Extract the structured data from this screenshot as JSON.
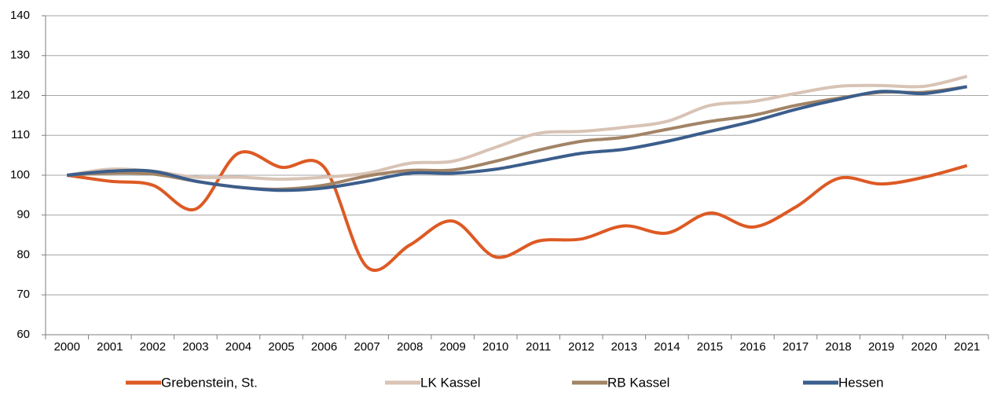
{
  "chart_data": {
    "type": "line",
    "categories": [
      "2000",
      "2001",
      "2002",
      "2003",
      "2004",
      "2005",
      "2006",
      "2007",
      "2008",
      "2009",
      "2010",
      "2011",
      "2012",
      "2013",
      "2014",
      "2015",
      "2016",
      "2017",
      "2018",
      "2019",
      "2020",
      "2021"
    ],
    "series": [
      {
        "name": "Grebenstein, St.",
        "color": "#dd5a24",
        "values": [
          100,
          98.5,
          97.5,
          91.5,
          105.5,
          102,
          102,
          77,
          82.5,
          88.5,
          79.5,
          83.5,
          84,
          87.3,
          85.5,
          90.5,
          87,
          92,
          99.2,
          97.8,
          99.5,
          102.4
        ]
      },
      {
        "name": "LK Kassel",
        "color": "#d8c3b5",
        "values": [
          100,
          101.5,
          101,
          99.5,
          99.5,
          99,
          99.5,
          100.5,
          103,
          103.5,
          107,
          110.5,
          111,
          112,
          113.5,
          117.5,
          118.5,
          120.5,
          122.3,
          122.5,
          122.3,
          124.8
        ]
      },
      {
        "name": "RB Kassel",
        "color": "#a28466",
        "values": [
          100,
          100.5,
          100.3,
          98.5,
          97,
          96.5,
          97.5,
          99.8,
          101.2,
          101.3,
          103.5,
          106.3,
          108.5,
          109.5,
          111.5,
          113.5,
          115,
          117.5,
          119.3,
          120.8,
          120.8,
          122.2
        ]
      },
      {
        "name": "Hessen",
        "color": "#3b5e8c",
        "values": [
          100,
          101,
          101,
          98.5,
          97,
          96.2,
          96.8,
          98.5,
          100.5,
          100.5,
          101.5,
          103.5,
          105.5,
          106.5,
          108.5,
          111,
          113.5,
          116.5,
          119,
          121,
          120.5,
          122.2
        ]
      }
    ],
    "ylim": [
      60,
      140
    ],
    "yticks": [
      60,
      70,
      80,
      90,
      100,
      110,
      120,
      130,
      140
    ],
    "grid": true,
    "legend": "bottom"
  }
}
